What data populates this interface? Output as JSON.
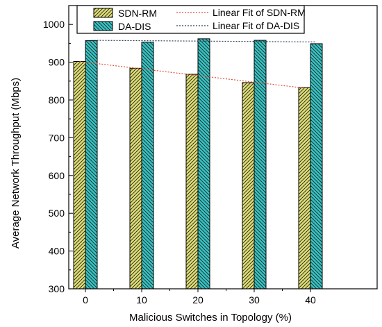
{
  "chart_data": {
    "type": "bar",
    "title": "",
    "xlabel": "Malicious Switches in Topology (%)",
    "ylabel": "Average Network Throughput (Mbps)",
    "categories": [
      "0",
      "10",
      "20",
      "30",
      "40"
    ],
    "ylim": [
      300,
      1050
    ],
    "yticks": [
      300,
      400,
      500,
      600,
      700,
      800,
      900,
      1000
    ],
    "grid": false,
    "legend_position": "top-right",
    "series": [
      {
        "name": "SDN-RM",
        "values": [
          902,
          884,
          868,
          846,
          833
        ],
        "color": "#dede73",
        "hatch": "forward-diagonal"
      },
      {
        "name": "DA-DIS",
        "values": [
          957,
          953,
          962,
          958,
          949
        ],
        "color": "#35c4c4",
        "hatch": "back-diagonal"
      }
    ],
    "fit_lines": [
      {
        "name": "Linear Fit of SDN-RM",
        "color": "#e0503c",
        "style": "dotted"
      },
      {
        "name": "Linear Fit of DA-DIS",
        "color": "#2f3f5f",
        "style": "dotted"
      }
    ]
  }
}
